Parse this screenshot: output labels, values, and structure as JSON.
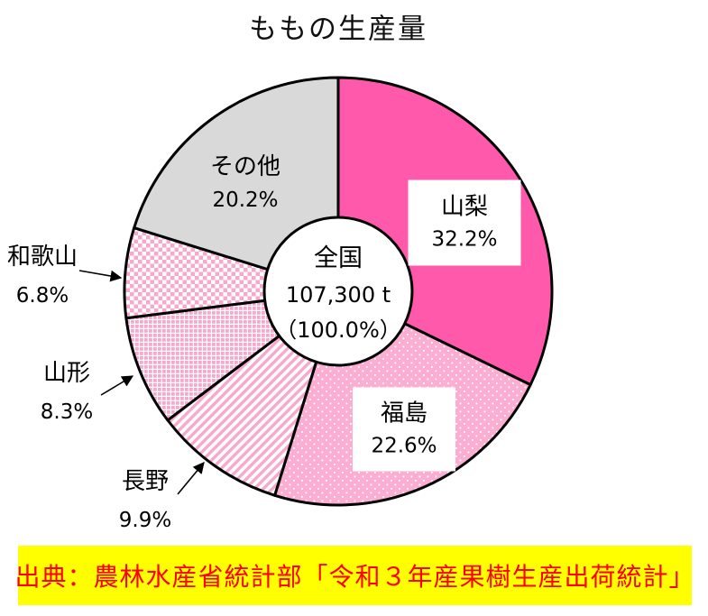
{
  "title": "ももの生産量",
  "center": {
    "region": "全国",
    "value": "107,300 t",
    "percent": "（100.0%）"
  },
  "source_banner": {
    "text": "出典：農林水産省統計部「令和３年産果樹生産出荷統計」",
    "bg": "#FFFF00",
    "color": "#FF0000"
  },
  "colors": {
    "hot_pink": "#FF59AC",
    "light_pink": "#FBAED2",
    "pattern_pink": "#F8A8CE",
    "gray": "#D9D9D9",
    "outline": "#000000",
    "label_box_bg": "#FFFFFF"
  },
  "chart_data": {
    "type": "pie",
    "title": "ももの生産量",
    "donut_hole": true,
    "start_angle_deg": 0,
    "direction": "clockwise",
    "total": {
      "label": "全国",
      "value_t": 107300,
      "value_label": "107,300 t",
      "percent_label": "（100.0%）"
    },
    "legend_position": "on-chart",
    "slices": [
      {
        "id": "yamanashi",
        "label": "山梨",
        "percent": 32.2,
        "percent_label": "32.2%",
        "fill": "solid-hot-pink",
        "label_style": "white-box-inside"
      },
      {
        "id": "fukushima",
        "label": "福島",
        "percent": 22.6,
        "percent_label": "22.6%",
        "fill": "white-dots-on-pink",
        "label_style": "white-box-inside"
      },
      {
        "id": "nagano",
        "label": "長野",
        "percent": 9.9,
        "percent_label": "9.9%",
        "fill": "diagonal-pink-stripes",
        "label_style": "outside-with-arrow"
      },
      {
        "id": "yamagata",
        "label": "山形",
        "percent": 8.3,
        "percent_label": "8.3%",
        "fill": "pink-grid",
        "label_style": "outside-with-arrow"
      },
      {
        "id": "wakayama",
        "label": "和歌山",
        "percent": 6.8,
        "percent_label": "6.8%",
        "fill": "pink-checkerboard",
        "label_style": "outside-with-arrow"
      },
      {
        "id": "sonota",
        "label": "その他",
        "percent": 20.2,
        "percent_label": "20.2%",
        "fill": "solid-gray",
        "label_style": "inside-plain"
      }
    ]
  }
}
